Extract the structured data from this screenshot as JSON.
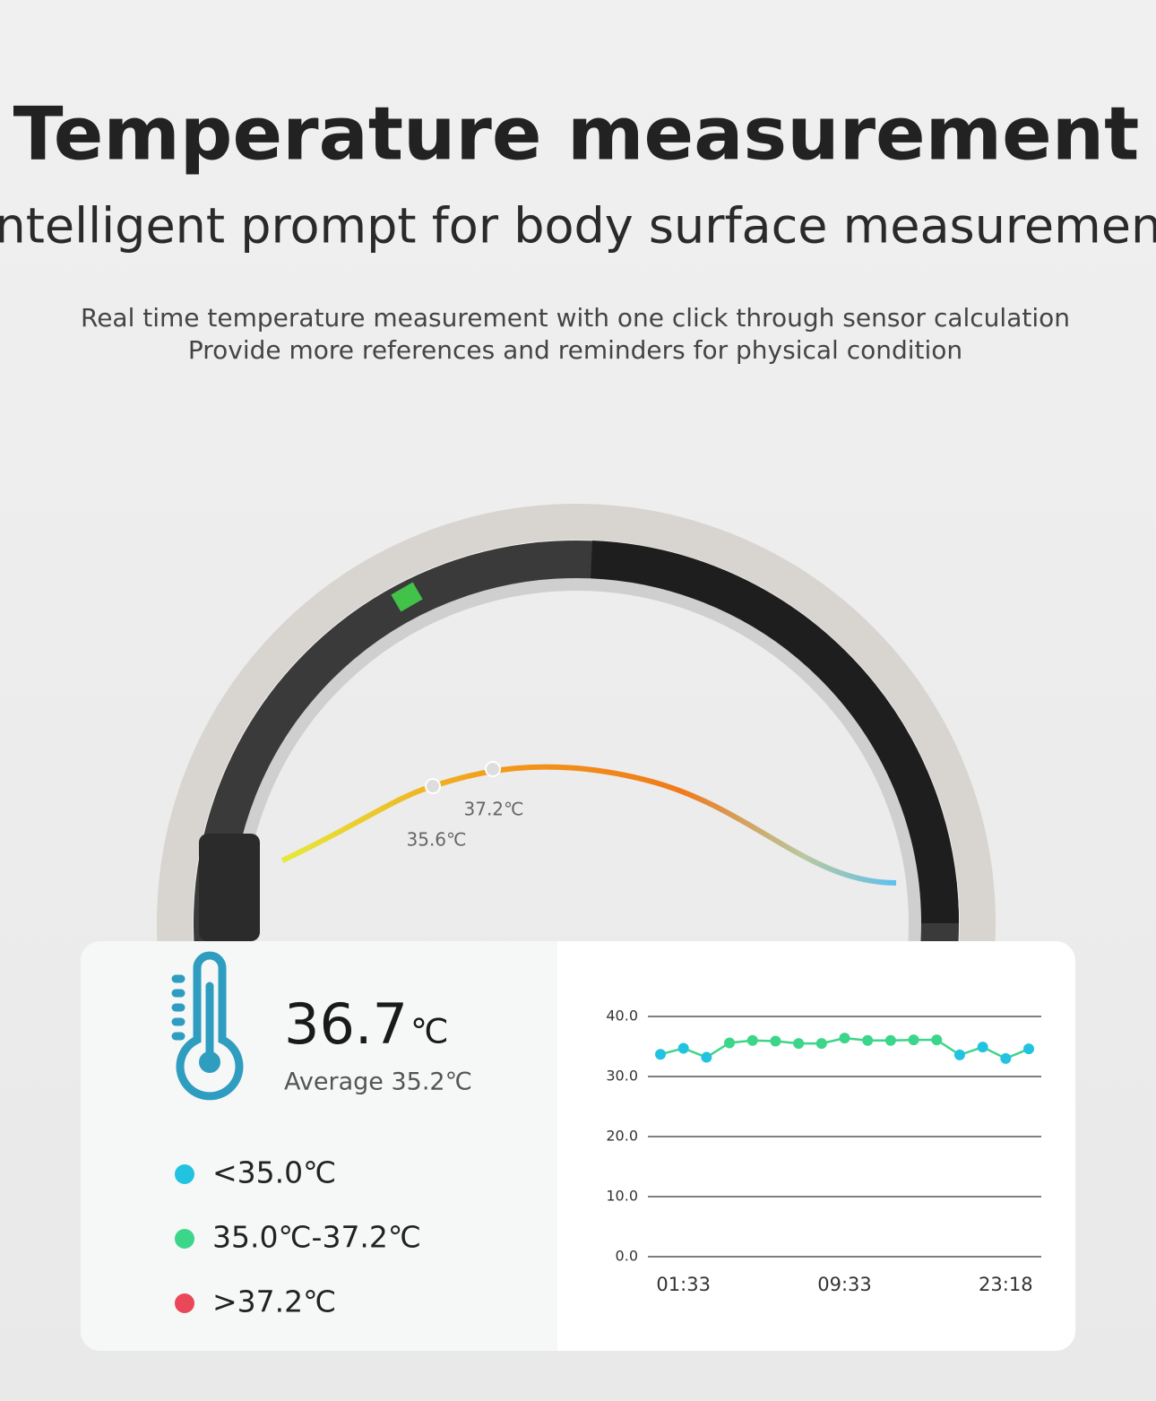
{
  "header": {
    "title": "Temperature measurement",
    "subtitle": "Intelligent prompt for body surface measurement",
    "description": [
      "Real time temperature measurement with one click through sensor calculation",
      "Provide more references and reminders for physical condition"
    ]
  },
  "ring_curve": {
    "labels": [
      "37.2℃",
      "35.6℃"
    ]
  },
  "readout": {
    "value": "36.7",
    "unit": "℃",
    "average": "Average 35.2℃"
  },
  "legend": [
    {
      "label": "<35.0℃",
      "color": "#22c3e0"
    },
    {
      "label": "35.0℃-37.2℃",
      "color": "#3bd68a"
    },
    {
      "label": ">37.2℃",
      "color": "#e8485a"
    }
  ],
  "chart_data": {
    "type": "line",
    "categories": [
      null,
      "01:33",
      null,
      null,
      null,
      null,
      null,
      null,
      "09:33",
      null,
      null,
      null,
      null,
      null,
      null,
      "23:18",
      null
    ],
    "series": [
      {
        "color": "#3bd68a",
        "values": [
          33.7,
          34.7,
          33.2,
          35.6,
          36.0,
          35.9,
          35.5,
          35.5,
          36.4,
          36.0,
          36.0,
          36.1,
          36.1,
          33.6,
          34.9,
          33.0,
          34.6
        ],
        "point_colors": [
          "#22c3e0",
          "#22c3e0",
          "#22c3e0",
          "#3bd68a",
          "#3bd68a",
          "#3bd68a",
          "#3bd68a",
          "#3bd68a",
          "#3bd68a",
          "#3bd68a",
          "#3bd68a",
          "#3bd68a",
          "#3bd68a",
          "#22c3e0",
          "#22c3e0",
          "#22c3e0",
          "#22c3e0"
        ]
      }
    ],
    "ylim": [
      0,
      40
    ],
    "yticks": [
      {
        "value": 0,
        "label": "0.0"
      },
      {
        "value": 10,
        "label": "10.0"
      },
      {
        "value": 20,
        "label": "20.0"
      },
      {
        "value": 30,
        "label": "30.0"
      },
      {
        "value": 40,
        "label": "40.0"
      }
    ],
    "grid": true
  }
}
